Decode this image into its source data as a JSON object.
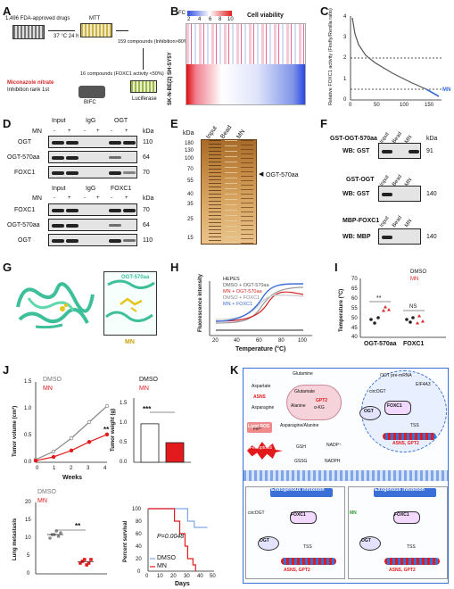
{
  "panels": {
    "A": "A",
    "B": "B",
    "C": "C",
    "D": "D",
    "E": "E",
    "F": "F",
    "G": "G",
    "H": "H",
    "I": "I",
    "J": "J",
    "K": "K"
  },
  "panelA": {
    "drugs": "1,496 FDA-approved drugs",
    "mtt": "MTT",
    "cond": "37 °C  24 h",
    "c159": "159 compounds (Inhibition>80%)",
    "c16": "16 compounds (FOXC1 activity <50%)",
    "mn": "Miconazole nitrate",
    "rank": "Inhibition rank 1st",
    "bifc": "BIFC",
    "luc": "Luciferase"
  },
  "panelB": {
    "fc": "FC",
    "ticks": [
      "2",
      "4",
      "6",
      "8",
      "10"
    ],
    "title": "Cell viability",
    "rows": [
      "SH-SY5Y",
      "SK-N-BE(2)"
    ]
  },
  "panelC": {
    "ylabel": "Relative FOXC1 activity (Firefly/Renilla ratio)",
    "yticks": [
      "0",
      "1",
      "2",
      "3",
      "4"
    ],
    "xticks": [
      "0",
      "50",
      "100",
      "150"
    ],
    "mn": "MN"
  },
  "panelD": {
    "top": {
      "cols": [
        "Input",
        "IgG",
        "OGT"
      ],
      "mn": "MN",
      "signs": [
        "-",
        "+",
        "-",
        "+",
        "-",
        "+"
      ],
      "rows": [
        "OGT",
        "OGT-570aa",
        "FOXC1"
      ],
      "kda": [
        "110",
        "64",
        "70"
      ],
      "kda_label": "kDa"
    },
    "bottom": {
      "cols": [
        "Input",
        "IgG",
        "FOXC1"
      ],
      "rows": [
        "FOXC1",
        "OGT-570aa",
        "OGT"
      ],
      "kda": [
        "70",
        "64",
        "110"
      ],
      "kda_label": "kDa"
    }
  },
  "panelE": {
    "cols": [
      "Input",
      "Bead",
      "MN"
    ],
    "kda_label": "kDa",
    "markers": [
      "180",
      "130",
      "100",
      "70",
      "55",
      "40",
      "35",
      "25",
      "15"
    ],
    "arrow": "OGT-570aa"
  },
  "panelF": {
    "b1": {
      "title": "GST-OGT-570aa",
      "wb": "WB: GST",
      "kda": "91"
    },
    "b2": {
      "title": "GST-OGT",
      "wb": "WB: GST",
      "kda": "140"
    },
    "b3": {
      "title": "MBP-FOXC1",
      "wb": "WB: MBP",
      "kda": "140"
    },
    "cols": [
      "Input",
      "Bead",
      "MN"
    ],
    "kda_label": "kDa"
  },
  "panelG": {
    "label": "OGT-570aa",
    "mn": "MN"
  },
  "panelH": {
    "legend": [
      "HEPES",
      "DMSO + OGT-570aa",
      "MN + OGT-570aa",
      "DMSO + FOXC1",
      "MN + FOXC1"
    ],
    "colors": [
      "#222222",
      "#9a9a9a",
      "#d62728",
      "#cccccc",
      "#3a6fd8"
    ],
    "xlabel": "Temperature (°C)",
    "ylabel": "Fluorescence intensity",
    "xticks": [
      "20",
      "40",
      "60",
      "80",
      "100"
    ]
  },
  "panelI": {
    "legend": [
      "DMSO",
      "MN"
    ],
    "ylabel": "Temperature (°C)",
    "yticks": [
      "40",
      "45",
      "50",
      "55",
      "60",
      "65",
      "70"
    ],
    "groups": [
      "OGT-570aa",
      "FOXC1"
    ],
    "sig": [
      "**",
      "NS"
    ]
  },
  "panelJ": {
    "tv": {
      "ylabel": "Tumor volume (cm³)",
      "xlabel": "Weeks",
      "legend": [
        "DMSO",
        "MN"
      ],
      "xticks": [
        "0",
        "1",
        "2",
        "3",
        "4"
      ],
      "yticks": [
        "0.0",
        "0.5",
        "1.0",
        "1.5"
      ],
      "sig": "**"
    },
    "tw": {
      "ylabel": "Tumor weight (g)",
      "legend": [
        "DMSO",
        "MN"
      ],
      "yticks": [
        "0.0",
        "0.5",
        "1.0",
        "1.5"
      ],
      "sig": "***"
    },
    "lm": {
      "ylabel": "Lung metastasis",
      "legend": [
        "DMSO",
        "MN"
      ],
      "yticks": [
        "0",
        "5",
        "10",
        "15",
        "20"
      ],
      "sig": "**"
    },
    "ps": {
      "ylabel": "Percent survival",
      "xlabel": "Days",
      "legend": [
        "DMSO",
        "MN"
      ],
      "p": "P=0.0048",
      "xticks": [
        "0",
        "10",
        "20",
        "30",
        "40",
        "50"
      ],
      "yticks": [
        "0",
        "20",
        "40",
        "60",
        "80",
        "100"
      ]
    }
  },
  "panelK": {
    "glutamine": "Glutamine",
    "glutamate": "Glutamate",
    "aspartate": "Aspartate",
    "asparagine": "Asparagine",
    "asns": "ASNS",
    "gpt2": "GPT2",
    "alanine": "Alanine",
    "akg": "α-KG",
    "asp_ala": "Asparagine/Alanine",
    "fe": "Fe²⁺",
    "lipid": "Lipid ROS",
    "ferro": "Ferroptosis",
    "gsh": "GSH",
    "gssg": "GSSG",
    "nadp": "NADP⁺",
    "nadph": "NADPH",
    "ogt": "OGT",
    "foxc1": "FOXC1",
    "tss": "TSS",
    "genes": "ASNS, GPT2",
    "premrna": "OGT pre-mRNA",
    "eif4a3": "EIF4A3",
    "circ": "circOGT",
    "endo": "Endogenous inhibition",
    "exo": "Exogenous inhibition",
    "mn": "MN"
  },
  "chart_data": [
    {
      "type": "line",
      "title": "",
      "xlabel": "Weeks",
      "ylabel": "Tumor volume (cm³)",
      "x": [
        0,
        1,
        2,
        3,
        4
      ],
      "series": [
        {
          "name": "DMSO",
          "values": [
            0.05,
            0.2,
            0.45,
            0.75,
            1.05
          ]
        },
        {
          "name": "MN",
          "values": [
            0.03,
            0.1,
            0.22,
            0.38,
            0.52
          ]
        }
      ],
      "ylim": [
        0,
        1.5
      ]
    },
    {
      "type": "bar",
      "title": "",
      "ylabel": "Tumor weight (g)",
      "categories": [
        "DMSO",
        "MN"
      ],
      "values": [
        0.98,
        0.5
      ],
      "ylim": [
        0,
        1.5
      ]
    },
    {
      "type": "scatter",
      "title": "",
      "ylabel": "Lung metastasis",
      "categories": [
        "DMSO",
        "MN"
      ],
      "series": [
        {
          "name": "DMSO",
          "values": [
            10,
            11,
            11,
            12,
            10.5,
            11.5
          ]
        },
        {
          "name": "MN",
          "values": [
            3,
            3.5,
            4,
            2.5,
            3,
            4
          ]
        }
      ],
      "ylim": [
        0,
        20
      ]
    },
    {
      "type": "line",
      "title": "",
      "xlabel": "Days",
      "ylabel": "Percent survival",
      "series": [
        {
          "name": "DMSO",
          "x": [
            0,
            25,
            30,
            35,
            45
          ],
          "values": [
            100,
            100,
            80,
            70,
            70
          ]
        },
        {
          "name": "MN",
          "x": [
            0,
            20,
            24,
            28,
            30,
            34,
            36
          ],
          "values": [
            100,
            80,
            60,
            40,
            20,
            10,
            0
          ]
        }
      ],
      "ylim": [
        0,
        100
      ]
    }
  ]
}
